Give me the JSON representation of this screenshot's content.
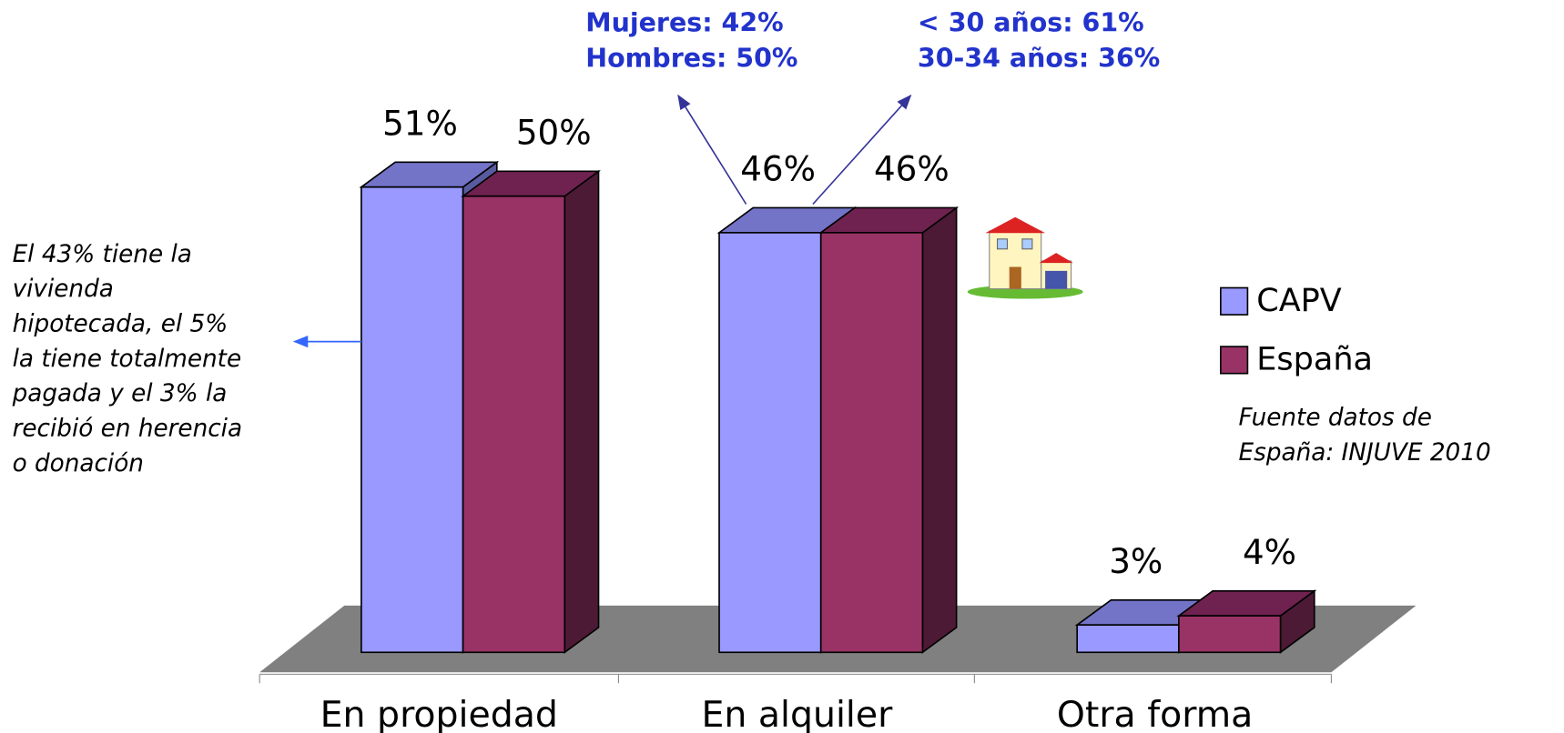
{
  "chart_data": {
    "type": "bar",
    "categories": [
      "En propiedad",
      "En alquiler",
      "Otra forma"
    ],
    "series": [
      {
        "name": "CAPV",
        "color": "#9999ff",
        "values": [
          51,
          46,
          3
        ],
        "value_labels": [
          "51%",
          "46%",
          "3%"
        ]
      },
      {
        "name": "España",
        "color": "#993366",
        "values": [
          50,
          46,
          4
        ],
        "value_labels": [
          "50%",
          "46%",
          "4%"
        ]
      }
    ],
    "legend": "right",
    "annotations": {
      "note": [
        "El 43% tiene la",
        "vivienda",
        "hipotecada, el 5%",
        "la tiene totalmente",
        "pagada y el 3% la",
        "recibió en herencia",
        "o donación"
      ],
      "gender": [
        "Mujeres: 42%",
        "Hombres: 50%"
      ],
      "age": [
        "< 30 años: 61%",
        "30-34 años: 36%"
      ],
      "source": [
        "Fuente datos de",
        "España: INJUVE 2010"
      ]
    }
  }
}
